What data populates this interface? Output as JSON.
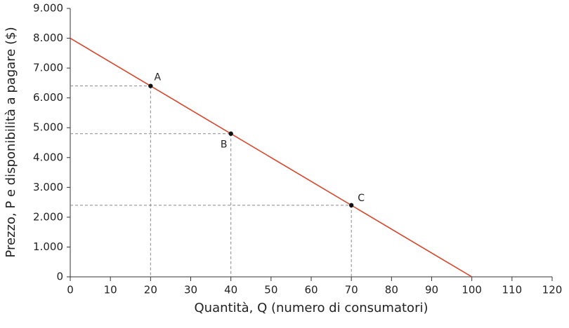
{
  "chart_data": {
    "type": "line",
    "xlabel": "Quantità, Q (numero di consumatori)",
    "ylabel": "Prezzo, P e disponibilità a pagare ($)",
    "x": [
      0,
      100
    ],
    "series": [
      {
        "color": "#d9452b",
        "values": [
          8000,
          0
        ]
      }
    ],
    "points": [
      {
        "label": "A",
        "x": 20,
        "y": 6400
      },
      {
        "label": "B",
        "x": 40,
        "y": 4800
      },
      {
        "label": "C",
        "x": 70,
        "y": 2400
      }
    ],
    "xlim": [
      0,
      120
    ],
    "xticks": [
      0,
      10,
      20,
      30,
      40,
      50,
      60,
      70,
      80,
      90,
      100,
      110,
      120
    ],
    "ylim": [
      0,
      9000
    ],
    "yticks": [
      0,
      {
        "value": 1000,
        "label": "1.000"
      },
      {
        "value": 2000,
        "label": "2.000"
      },
      {
        "value": 3000,
        "label": "3.000"
      },
      {
        "value": 4000,
        "label": "4.000"
      },
      {
        "value": 5000,
        "label": "5.000"
      },
      {
        "value": 6000,
        "label": "6.000"
      },
      {
        "value": 7000,
        "label": "7.000"
      },
      {
        "value": 8000,
        "label": "8.000"
      },
      {
        "value": 9000,
        "label": "9.000"
      }
    ]
  }
}
